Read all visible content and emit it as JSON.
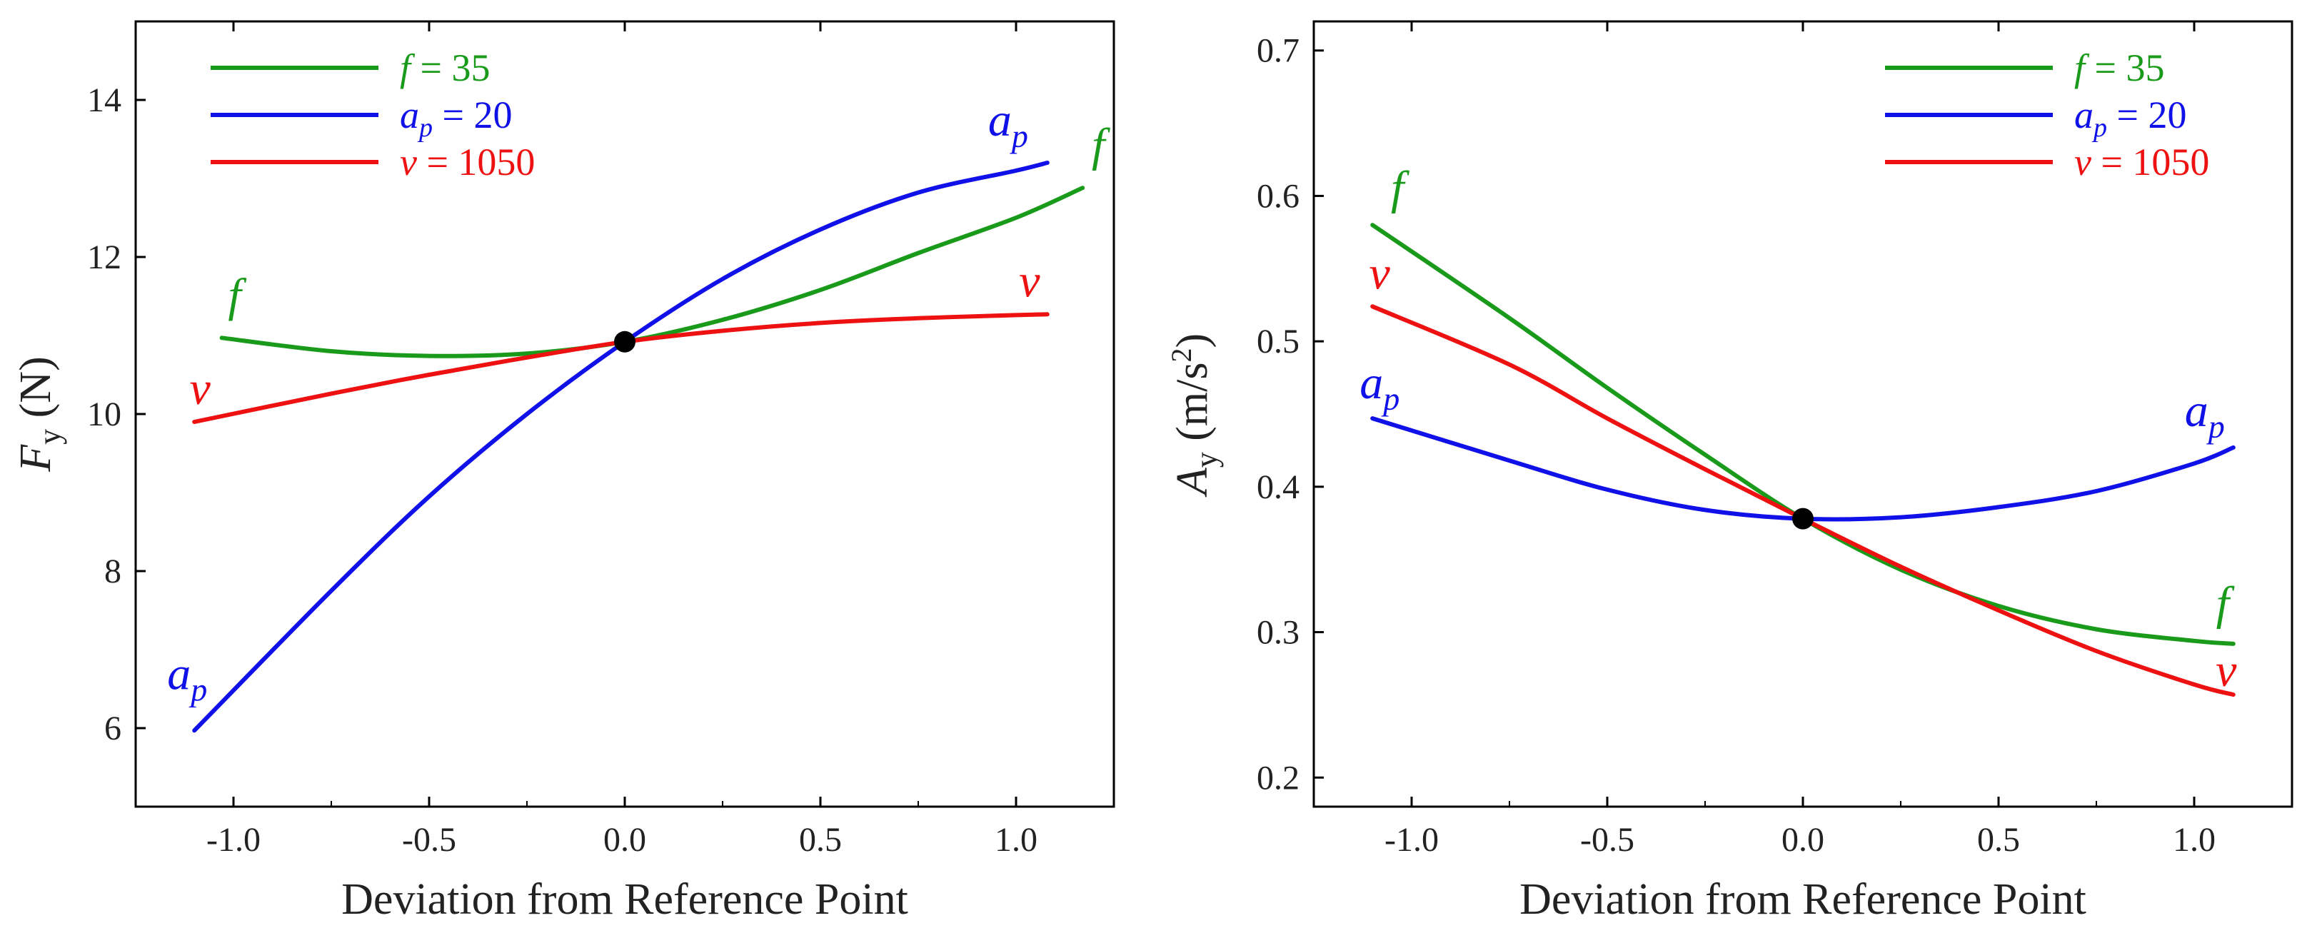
{
  "chart_data": [
    {
      "type": "line",
      "title": "",
      "xlabel": "Deviation from Reference Point",
      "ylabel": {
        "symbol": "F",
        "sub": "y",
        "unit": " (N)"
      },
      "xlim": [
        -1.25,
        1.25
      ],
      "ylim": [
        5,
        15
      ],
      "xticks": [
        -1.0,
        -0.5,
        0.0,
        0.5,
        1.0
      ],
      "xtick_labels": [
        "-1.0",
        "-0.5",
        "0.0",
        "0.5",
        "1.0"
      ],
      "yticks": [
        6,
        8,
        10,
        12,
        14
      ],
      "ytick_labels": [
        "6",
        "8",
        "10",
        "12",
        "14"
      ],
      "legend_position": "top-left",
      "reference_point": {
        "x": 0.0,
        "y": 10.92
      },
      "series": [
        {
          "name": "f",
          "legend": {
            "symbol": "f",
            "sub": "",
            "text": " = 35"
          },
          "color": "#1a9a1a",
          "label_at": "both-ends",
          "x": [
            -1.03,
            -0.75,
            -0.5,
            -0.25,
            0.0,
            0.25,
            0.5,
            0.75,
            1.0,
            1.17
          ],
          "y": [
            10.97,
            10.8,
            10.74,
            10.77,
            10.92,
            11.2,
            11.58,
            12.05,
            12.5,
            12.88
          ]
        },
        {
          "name": "ap",
          "legend": {
            "symbol": "a",
            "sub": "p",
            "text": " = 20"
          },
          "color": "#1010e8",
          "label_at": "both-ends",
          "x": [
            -1.1,
            -0.75,
            -0.5,
            -0.25,
            0.0,
            0.25,
            0.5,
            0.75,
            1.0,
            1.08
          ],
          "y": [
            5.97,
            7.75,
            8.95,
            10.0,
            10.92,
            11.72,
            12.35,
            12.82,
            13.1,
            13.2
          ]
        },
        {
          "name": "v",
          "legend": {
            "symbol": "v",
            "sub": "",
            "text": " = 1050"
          },
          "color": "#ee1111",
          "label_at": "both-ends",
          "x": [
            -1.1,
            -0.75,
            -0.5,
            -0.25,
            0.0,
            0.25,
            0.5,
            0.75,
            1.0,
            1.08
          ],
          "y": [
            9.9,
            10.26,
            10.5,
            10.72,
            10.92,
            11.06,
            11.16,
            11.22,
            11.26,
            11.27
          ]
        }
      ]
    },
    {
      "type": "line",
      "title": "",
      "xlabel": "Deviation from Reference Point",
      "ylabel": {
        "symbol": "A",
        "sub": "y",
        "unit": " (m/s",
        "sup": "2",
        "close": ")"
      },
      "xlim": [
        -1.25,
        1.25
      ],
      "ylim": [
        0.18,
        0.72
      ],
      "xticks": [
        -1.0,
        -0.5,
        0.0,
        0.5,
        1.0
      ],
      "xtick_labels": [
        "-1.0",
        "-0.5",
        "0.0",
        "0.5",
        "1.0"
      ],
      "yticks": [
        0.2,
        0.3,
        0.4,
        0.5,
        0.6,
        0.7
      ],
      "ytick_labels": [
        "0.2",
        "0.3",
        "0.4",
        "0.5",
        "0.6",
        "0.7"
      ],
      "legend_position": "top-right",
      "reference_point": {
        "x": 0.0,
        "y": 0.378
      },
      "series": [
        {
          "name": "f",
          "legend": {
            "symbol": "f",
            "sub": "",
            "text": " = 35"
          },
          "color": "#1a9a1a",
          "label_at": "both-ends",
          "x": [
            -1.1,
            -0.75,
            -0.5,
            -0.25,
            0.0,
            0.25,
            0.5,
            0.75,
            1.0,
            1.1
          ],
          "y": [
            0.58,
            0.516,
            0.468,
            0.422,
            0.378,
            0.343,
            0.318,
            0.302,
            0.294,
            0.292
          ]
        },
        {
          "name": "ap",
          "legend": {
            "symbol": "a",
            "sub": "p",
            "text": " = 20"
          },
          "color": "#1010e8",
          "label_at": "both-ends",
          "x": [
            -1.1,
            -0.75,
            -0.5,
            -0.25,
            0.0,
            0.25,
            0.5,
            0.75,
            1.0,
            1.1
          ],
          "y": [
            0.447,
            0.418,
            0.398,
            0.384,
            0.378,
            0.379,
            0.386,
            0.397,
            0.416,
            0.427
          ]
        },
        {
          "name": "v",
          "legend": {
            "symbol": "v",
            "sub": "",
            "text": " = 1050"
          },
          "color": "#ee1111",
          "label_at": "both-ends",
          "x": [
            -1.1,
            -0.75,
            -0.5,
            -0.25,
            0.0,
            0.25,
            0.5,
            0.75,
            1.0,
            1.1
          ],
          "y": [
            0.524,
            0.484,
            0.447,
            0.412,
            0.378,
            0.345,
            0.315,
            0.287,
            0.264,
            0.257
          ]
        }
      ]
    }
  ]
}
